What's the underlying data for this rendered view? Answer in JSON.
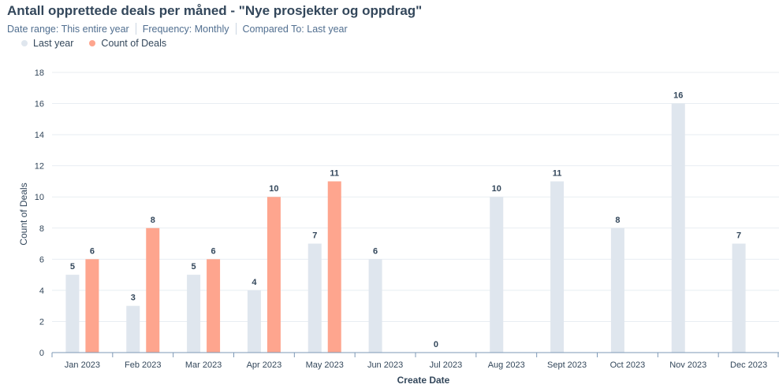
{
  "report": {
    "title": "Antall opprettede deals per måned - \"Nye prosjekter og oppdrag\"",
    "date_range": "Date range: This entire year",
    "frequency": "Frequency: Monthly",
    "compared_to": "Compared To: Last year"
  },
  "colors": {
    "last_year": "#dfe6ee",
    "current": "#fea58e",
    "grid": "#e8edf2",
    "axis": "#7c98b6",
    "text": "#33475b"
  },
  "chart_data": {
    "type": "bar",
    "title": "Antall opprettede deals per måned - \"Nye prosjekter og oppdrag\"",
    "xlabel": "Create Date",
    "ylabel": "Count of Deals",
    "ylim": [
      0,
      18
    ],
    "yticks": [
      "0",
      "2",
      "4",
      "6",
      "8",
      "10",
      "12",
      "14",
      "16",
      "18"
    ],
    "grid": true,
    "legend_position": "top-left",
    "categories": [
      "Jan 2023",
      "Feb 2023",
      "Mar 2023",
      "Apr 2023",
      "May 2023",
      "Jun 2023",
      "Jul 2023",
      "Aug 2023",
      "Sept 2023",
      "Oct 2023",
      "Nov 2023",
      "Dec 2023"
    ],
    "series": [
      {
        "name": "Last year",
        "color": "#dfe6ee",
        "values": [
          5,
          3,
          5,
          4,
          7,
          6,
          0,
          10,
          11,
          8,
          16,
          7
        ]
      },
      {
        "name": "Count of Deals",
        "color": "#fea58e",
        "values": [
          6,
          8,
          6,
          10,
          11,
          null,
          null,
          null,
          null,
          null,
          null,
          null
        ]
      }
    ]
  }
}
